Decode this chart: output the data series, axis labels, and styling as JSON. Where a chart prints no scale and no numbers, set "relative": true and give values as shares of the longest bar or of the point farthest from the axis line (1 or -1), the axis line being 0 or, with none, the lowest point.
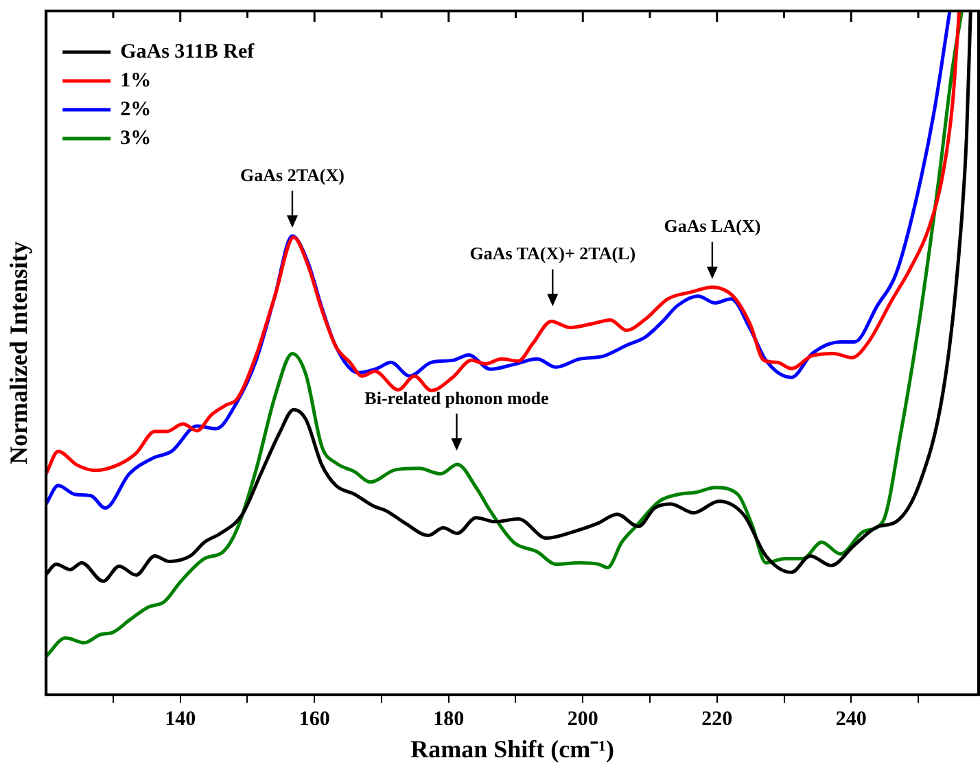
{
  "chart_data": {
    "type": "line",
    "xlabel": "Raman Shift (cm⁻¹)",
    "ylabel": "Normalized Intensity",
    "relative": true,
    "xlim": [
      120,
      259
    ],
    "xticks": [
      {
        "value": 130,
        "label": null
      },
      140,
      {
        "value": 150,
        "label": null
      },
      160,
      {
        "value": 170,
        "label": null
      },
      180,
      {
        "value": 190,
        "label": null
      },
      200,
      {
        "value": 210,
        "label": null
      },
      220,
      {
        "value": 230,
        "label": null
      },
      240,
      {
        "value": 250,
        "label": null
      }
    ],
    "tick_labels": "x",
    "grid": false,
    "legend": "top left",
    "marker": "none",
    "line_style": "solid",
    "annotations": [
      {
        "text": "GaAs 2TA(X)",
        "x": 156.7,
        "y": 0.671
      },
      {
        "text": "Bi-related phonon mode",
        "x": 181.2,
        "y": 0.345
      },
      {
        "text": "GaAs TA(X)+ 2TA(L)",
        "x": 195.5,
        "y": 0.556
      },
      {
        "text": "GaAs LA(X)",
        "x": 219.3,
        "y": 0.596
      }
    ],
    "series": [
      {
        "name": "GaAs 311B Ref",
        "color": "#000000",
        "x": [
          120,
          121.5,
          123.6,
          125.3,
          128.5,
          130.9,
          133.4,
          136.2,
          138.3,
          141.5,
          143.6,
          146,
          149.2,
          152,
          154.8,
          156.9,
          158.7,
          161.1,
          163.2,
          166,
          168.8,
          170.7,
          173.5,
          177,
          179.2,
          181.3,
          184.1,
          186.9,
          190.4,
          194.6,
          198.8,
          202.3,
          205.1,
          208.3,
          210.7,
          213.1,
          216.5,
          220.3,
          224,
          227.3,
          231.1,
          233.9,
          237,
          240.5,
          244,
          246.7,
          250.2,
          253.7,
          255.8,
          257.2,
          257.8
        ],
        "values": [
          0.176,
          0.191,
          0.183,
          0.193,
          0.166,
          0.188,
          0.175,
          0.203,
          0.195,
          0.203,
          0.223,
          0.236,
          0.263,
          0.323,
          0.383,
          0.417,
          0.403,
          0.336,
          0.306,
          0.293,
          0.276,
          0.269,
          0.251,
          0.233,
          0.244,
          0.236,
          0.259,
          0.253,
          0.257,
          0.229,
          0.239,
          0.251,
          0.264,
          0.246,
          0.273,
          0.279,
          0.266,
          0.283,
          0.263,
          0.203,
          0.179,
          0.203,
          0.189,
          0.219,
          0.246,
          0.253,
          0.309,
          0.443,
          0.616,
          0.816,
          1.0
        ]
      },
      {
        "name": "1%",
        "color": "#ff0000",
        "x": [
          120,
          121.8,
          124.6,
          127.4,
          130.9,
          133.4,
          136.2,
          138,
          140.4,
          142.5,
          144.6,
          146.7,
          148.5,
          151.3,
          154.1,
          156.9,
          159,
          161.1,
          163.2,
          165.3,
          167.1,
          169,
          172.5,
          174.9,
          177.4,
          180.6,
          183.4,
          185.5,
          187.9,
          190.4,
          192.5,
          195.3,
          198.1,
          201.6,
          204.1,
          206.5,
          209.3,
          212.7,
          216.2,
          219.3,
          222.4,
          224.9,
          227,
          229,
          231.1,
          234.2,
          237.4,
          240.1,
          242.6,
          246,
          248.8,
          251.6,
          253.7,
          255.1,
          256.1
        ],
        "values": [
          0.323,
          0.356,
          0.336,
          0.328,
          0.337,
          0.353,
          0.385,
          0.385,
          0.396,
          0.386,
          0.409,
          0.423,
          0.433,
          0.496,
          0.583,
          0.669,
          0.629,
          0.563,
          0.509,
          0.486,
          0.466,
          0.473,
          0.446,
          0.466,
          0.445,
          0.464,
          0.489,
          0.484,
          0.491,
          0.488,
          0.513,
          0.546,
          0.537,
          0.543,
          0.548,
          0.533,
          0.549,
          0.579,
          0.589,
          0.596,
          0.583,
          0.543,
          0.489,
          0.486,
          0.477,
          0.496,
          0.499,
          0.493,
          0.516,
          0.576,
          0.623,
          0.683,
          0.763,
          0.863,
          1.0
        ]
      },
      {
        "name": "2%",
        "color": "#0000ff",
        "x": [
          120,
          121.8,
          124.3,
          126.7,
          128.8,
          132.4,
          135.9,
          138.7,
          142.5,
          145.3,
          148.5,
          151.3,
          154.1,
          156.7,
          159,
          161.1,
          163.2,
          166.5,
          169.3,
          171.4,
          174.2,
          177.4,
          180.6,
          183,
          186.2,
          189.7,
          193.2,
          196,
          199.5,
          203,
          206.5,
          209.3,
          211.9,
          214.1,
          217.2,
          219.7,
          222.1,
          224.9,
          227.3,
          231.1,
          234.2,
          238.4,
          240.5,
          243.9,
          246.7,
          249.5,
          252.3,
          254.7
        ],
        "values": [
          0.279,
          0.306,
          0.293,
          0.291,
          0.273,
          0.323,
          0.346,
          0.356,
          0.393,
          0.389,
          0.429,
          0.489,
          0.583,
          0.671,
          0.633,
          0.566,
          0.509,
          0.471,
          0.477,
          0.486,
          0.466,
          0.486,
          0.489,
          0.497,
          0.476,
          0.483,
          0.491,
          0.479,
          0.491,
          0.495,
          0.511,
          0.523,
          0.546,
          0.569,
          0.583,
          0.573,
          0.579,
          0.536,
          0.489,
          0.464,
          0.499,
          0.516,
          0.516,
          0.569,
          0.616,
          0.716,
          0.849,
          1.0
        ]
      },
      {
        "name": "3%",
        "color": "#008000",
        "x": [
          120,
          122.9,
          125.7,
          128.1,
          129.9,
          132.4,
          135.2,
          137.6,
          140.1,
          143.6,
          146.4,
          148.5,
          151.3,
          154.1,
          156.7,
          158.7,
          161.1,
          163.2,
          166,
          168.3,
          172.1,
          175.6,
          178.8,
          181.3,
          184.1,
          186.2,
          189.7,
          193.2,
          196,
          199.5,
          202.3,
          203.7,
          205.8,
          207.9,
          211.4,
          214.2,
          216.9,
          219.7,
          223.1,
          225.2,
          227.3,
          230.1,
          232.8,
          235.6,
          238.4,
          241.9,
          244.7,
          247.4,
          250.2,
          253,
          255.1,
          256.5
        ],
        "values": [
          0.056,
          0.083,
          0.076,
          0.088,
          0.091,
          0.109,
          0.128,
          0.136,
          0.166,
          0.199,
          0.209,
          0.243,
          0.329,
          0.436,
          0.499,
          0.469,
          0.363,
          0.339,
          0.326,
          0.311,
          0.329,
          0.331,
          0.323,
          0.337,
          0.303,
          0.269,
          0.223,
          0.209,
          0.191,
          0.193,
          0.191,
          0.186,
          0.223,
          0.246,
          0.283,
          0.293,
          0.296,
          0.303,
          0.293,
          0.249,
          0.193,
          0.199,
          0.199,
          0.223,
          0.206,
          0.239,
          0.253,
          0.383,
          0.549,
          0.749,
          0.916,
          1.0
        ]
      }
    ]
  }
}
